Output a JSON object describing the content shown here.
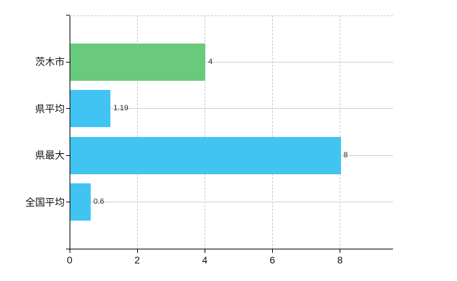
{
  "chart_data": {
    "type": "bar",
    "orientation": "horizontal",
    "title": "",
    "xlabel": "",
    "ylabel": "",
    "categories": [
      "茨木市",
      "県平均",
      "県最大",
      "全国平均"
    ],
    "values": [
      4,
      1.19,
      8,
      0.6
    ],
    "value_labels": [
      "4",
      "1.19",
      "8",
      "0.6"
    ],
    "bar_colors": [
      "#69ca7c",
      "#41c4f1",
      "#41c4f1",
      "#41c4f1"
    ],
    "xlim": [
      0,
      9.56
    ],
    "x_ticks": [
      0,
      2,
      4,
      6,
      8
    ],
    "x_tick_labels": [
      "0",
      "2",
      "4",
      "6",
      "8"
    ],
    "grid": {
      "vertical": "dashed",
      "horizontal": "solid",
      "top_border": "dashed",
      "vgrid_color": "#c7c8cd",
      "hgrid_color": "#ccd4ca"
    },
    "axis_color": "#000000",
    "background_color": "#ffffff",
    "legend": "none"
  }
}
